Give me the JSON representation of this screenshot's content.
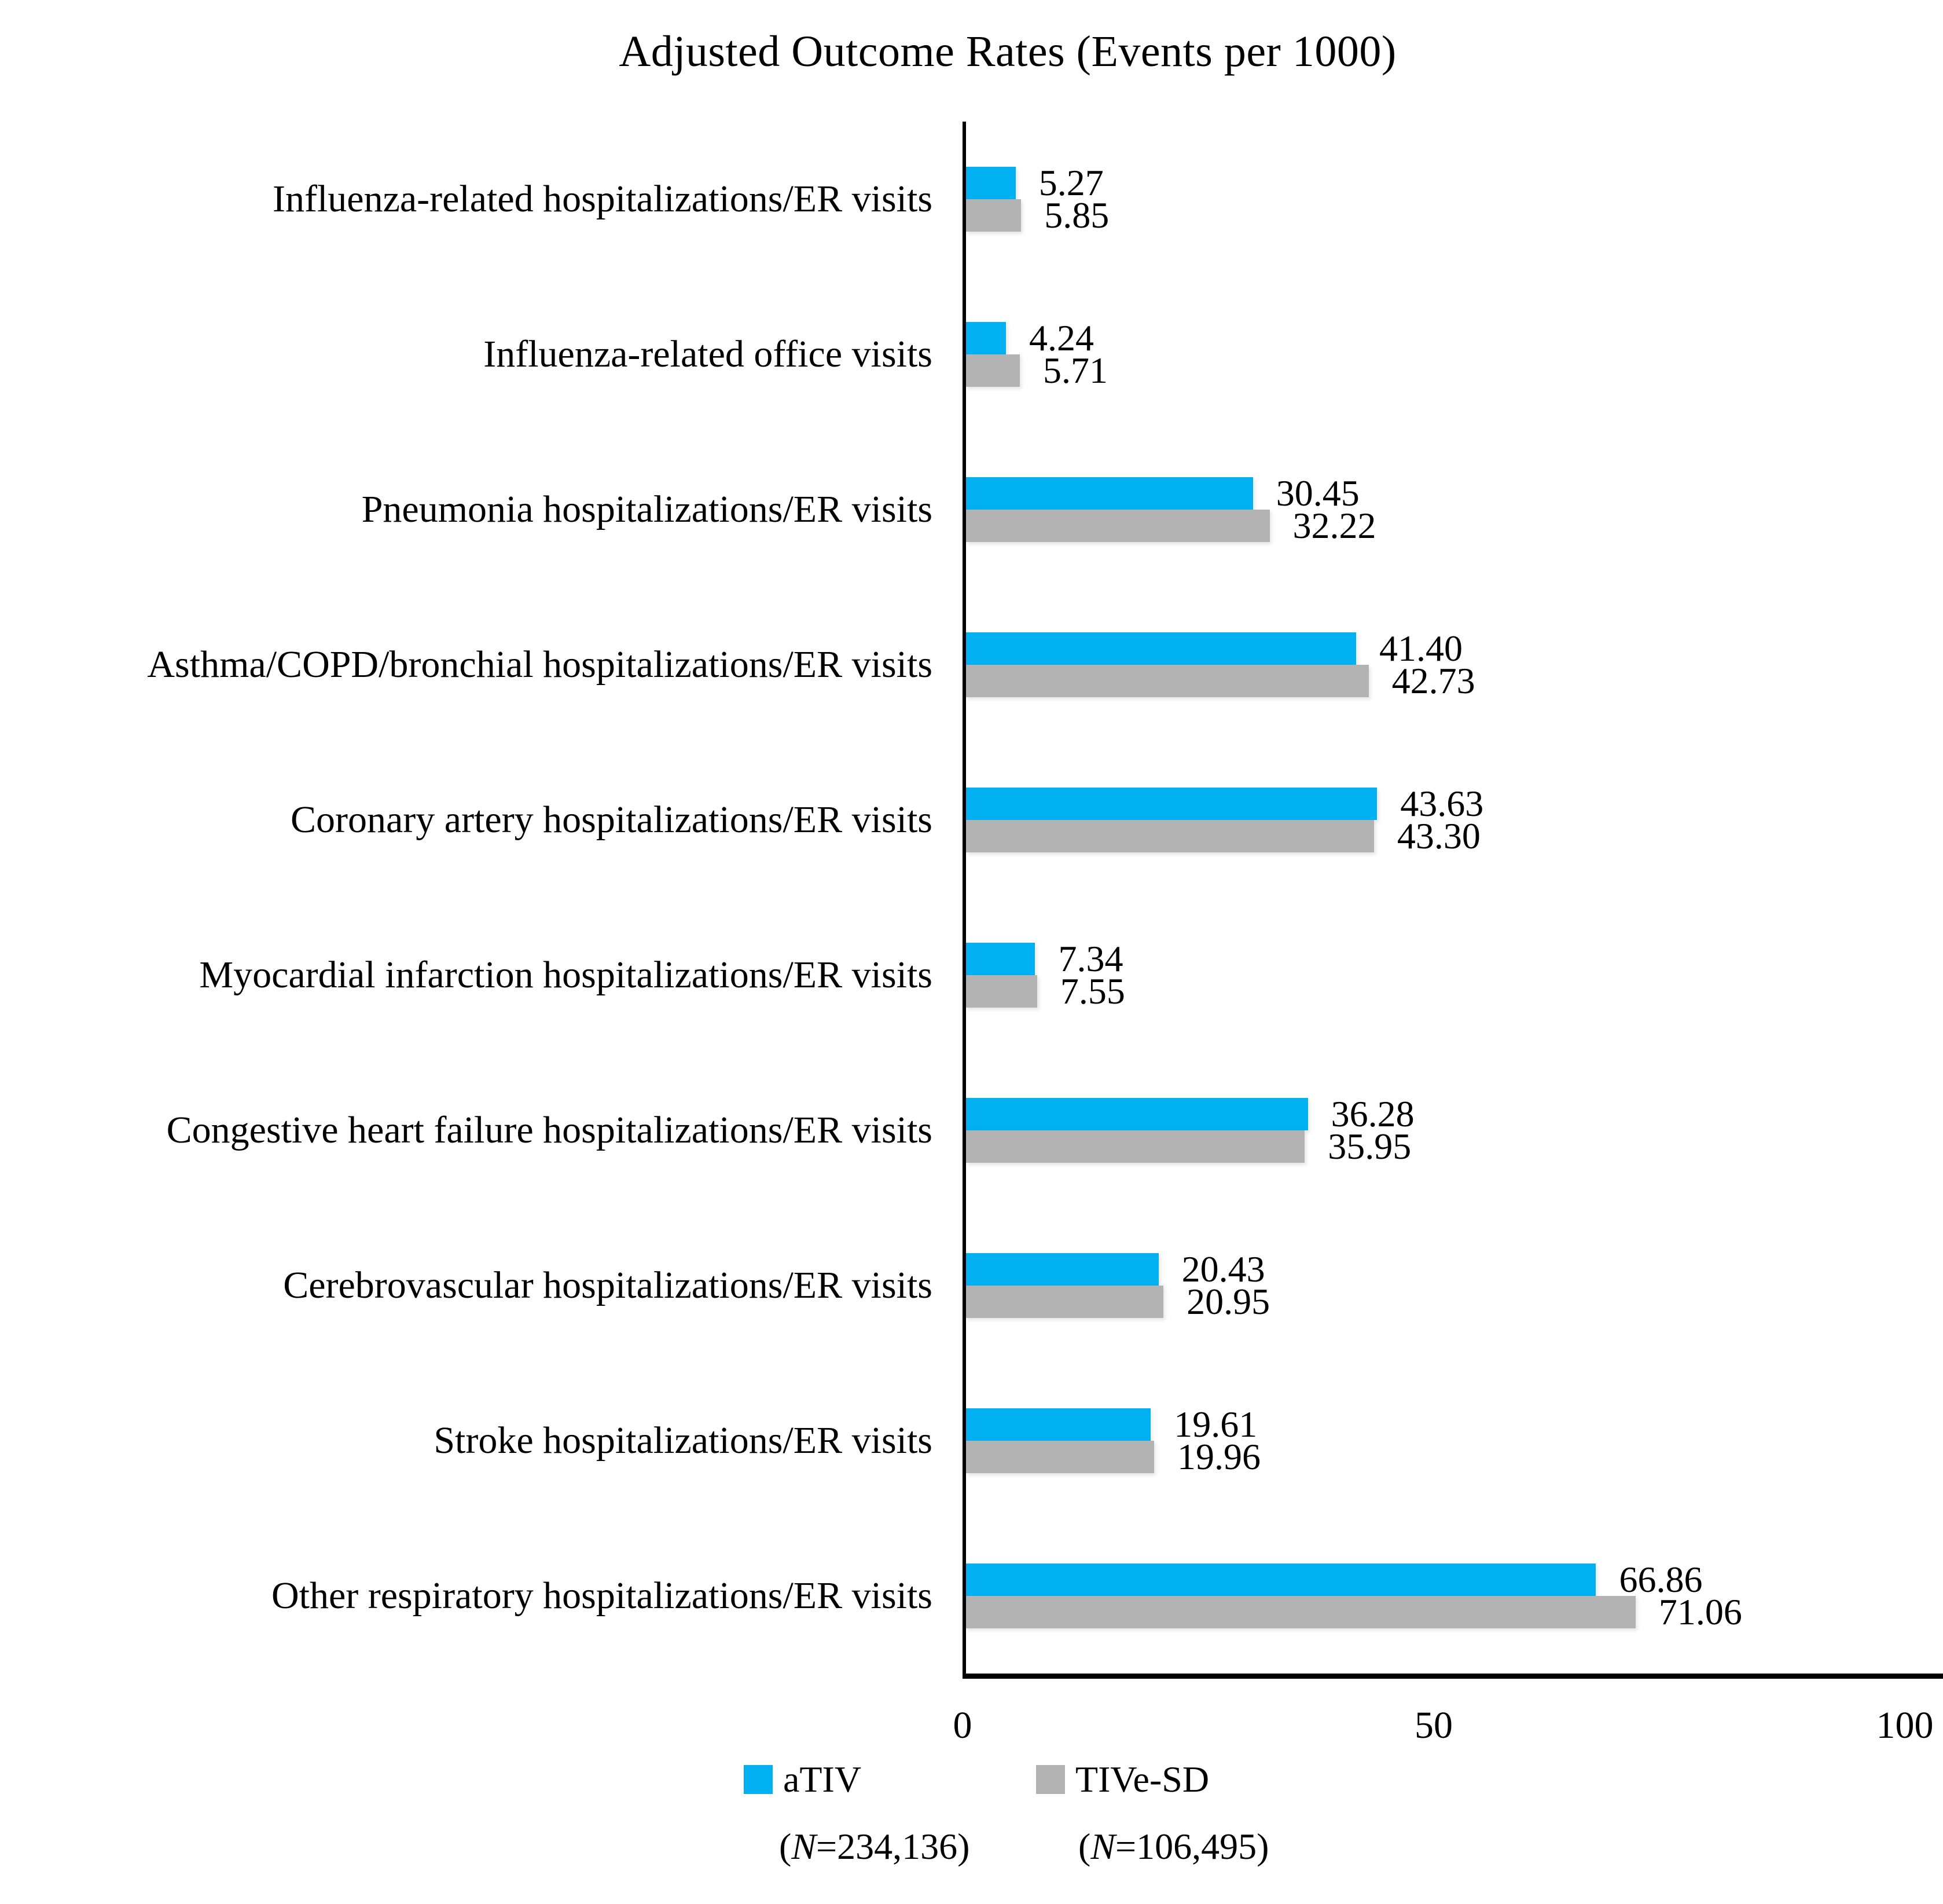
{
  "chart_data": {
    "type": "bar",
    "orientation": "horizontal",
    "title": "Adjusted Outcome Rates (Events per 1000)",
    "categories": [
      "Influenza-related hospitalizations/ER visits",
      "Influenza-related office visits",
      "Pneumonia hospitalizations/ER visits",
      "Asthma/COPD/bronchial hospitalizations/ER visits",
      "Coronary artery hospitalizations/ER visits",
      "Myocardial infarction hospitalizations/ER visits",
      "Congestive heart failure hospitalizations/ER visits",
      "Cerebrovascular hospitalizations/ER visits",
      "Stroke hospitalizations/ER visits",
      "Other respiratory hospitalizations/ER visits"
    ],
    "series": [
      {
        "name": "aTIV",
        "color": "#00B0F0",
        "n_open": "(",
        "n_symbol": "N",
        "n_rest": "=234,136)",
        "values": [
          5.27,
          4.24,
          30.45,
          41.4,
          43.63,
          7.34,
          36.28,
          20.43,
          19.61,
          66.86
        ]
      },
      {
        "name": "TIVe-SD",
        "color": "#B3B3B3",
        "n_open": "(",
        "n_symbol": "N",
        "n_rest": "=106,495)",
        "values": [
          5.85,
          5.71,
          32.22,
          42.73,
          43.3,
          7.55,
          35.95,
          20.95,
          19.96,
          71.06
        ]
      }
    ],
    "xlim": [
      0,
      100
    ],
    "xticks": [
      0,
      50,
      100
    ],
    "value_decimals": 2,
    "grid": false,
    "legend_position": "bottom"
  }
}
